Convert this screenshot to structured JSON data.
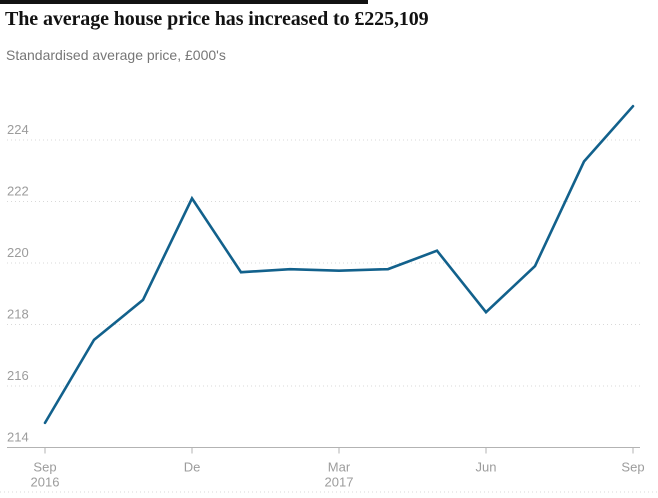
{
  "header": {
    "title": "The average house price has increased to £225,109",
    "subtitle": "Standardised average price, £000's"
  },
  "chart_data": {
    "type": "line",
    "title": "The average house price has increased to £225,109",
    "subtitle": "Standardised average price, £000's",
    "ylabel": "Standardised average price, £000's",
    "xlabel": "",
    "categories": [
      "Sep 2016",
      "Oct 2016",
      "Nov 2016",
      "Dec 2016",
      "Jan 2017",
      "Feb 2017",
      "Mar 2017",
      "Apr 2017",
      "May 2017",
      "Jun 2017",
      "Jul 2017",
      "Aug 2017",
      "Sep 2017"
    ],
    "values": [
      214.8,
      217.5,
      218.8,
      222.1,
      219.7,
      219.8,
      219.75,
      219.8,
      220.4,
      218.4,
      219.9,
      223.3,
      225.1
    ],
    "final_value_label": "225,109",
    "ylim": [
      214,
      225.5
    ],
    "yticks": [
      214,
      216,
      218,
      220,
      222,
      224
    ],
    "xticks": [
      {
        "index": 0,
        "label": "Sep",
        "sublabel": "2016"
      },
      {
        "index": 3,
        "label": "De",
        "sublabel": ""
      },
      {
        "index": 6,
        "label": "Mar",
        "sublabel": "2017"
      },
      {
        "index": 9,
        "label": "Jun",
        "sublabel": ""
      },
      {
        "index": 12,
        "label": "Sep",
        "sublabel": ""
      }
    ],
    "grid": "dotted-horizontal-gridlines",
    "legend": "none"
  },
  "colors": {
    "accent_bar": "#121212",
    "title_text": "#121212",
    "subtitle_text": "#767676",
    "line": "#12618c",
    "gridline": "#d9d9d9",
    "axis_line": "#b3b3b3",
    "tick_label": "#9c9c9c"
  }
}
